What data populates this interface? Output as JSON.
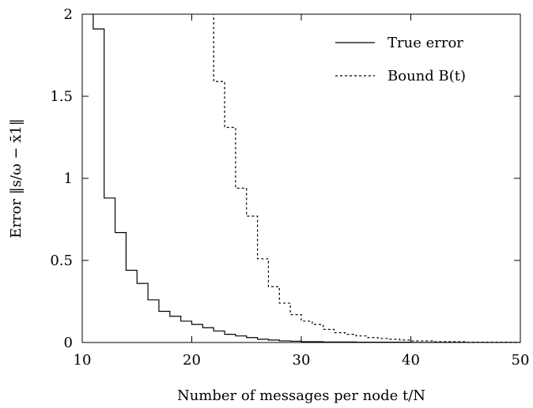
{
  "chart_data": {
    "type": "line",
    "xlabel": "Number of messages per node t/N",
    "ylabel": "Error ‖s/ω − x̄1‖",
    "xlim": [
      10,
      50
    ],
    "ylim": [
      0,
      2
    ],
    "x_ticks": [
      10,
      20,
      30,
      40,
      50
    ],
    "y_ticks": [
      0,
      0.5,
      1,
      1.5,
      2
    ],
    "x_tick_labels": [
      "10",
      "20",
      "30",
      "40",
      "50"
    ],
    "y_tick_labels": [
      "0",
      "0.5",
      "1",
      "1.5",
      "2"
    ],
    "grid": false,
    "legend_position": "top-right",
    "series": [
      {
        "name": "True error",
        "style": "solid",
        "step": true,
        "x": [
          10.9,
          11,
          12,
          13,
          14,
          15,
          16,
          17,
          18,
          19,
          20,
          21,
          22,
          23,
          24,
          25,
          26,
          27,
          28,
          29,
          30,
          32,
          35,
          40,
          45,
          50
        ],
        "y": [
          2.0,
          1.91,
          0.88,
          0.67,
          0.44,
          0.36,
          0.26,
          0.19,
          0.16,
          0.13,
          0.11,
          0.09,
          0.07,
          0.05,
          0.04,
          0.03,
          0.02,
          0.015,
          0.01,
          0.008,
          0.005,
          0.003,
          0.002,
          0.001,
          0.0,
          0.0
        ]
      },
      {
        "name": "Bound B(t)",
        "style": "dashed",
        "step": true,
        "x": [
          22,
          23,
          24,
          25,
          26,
          27,
          28,
          29,
          30,
          31,
          32,
          33,
          34,
          35,
          36,
          37,
          38,
          39,
          40,
          42,
          45,
          50
        ],
        "y": [
          1.59,
          1.31,
          0.94,
          0.77,
          0.51,
          0.34,
          0.24,
          0.17,
          0.13,
          0.11,
          0.08,
          0.06,
          0.05,
          0.04,
          0.03,
          0.025,
          0.02,
          0.015,
          0.01,
          0.005,
          0.002,
          0.0
        ]
      }
    ]
  }
}
